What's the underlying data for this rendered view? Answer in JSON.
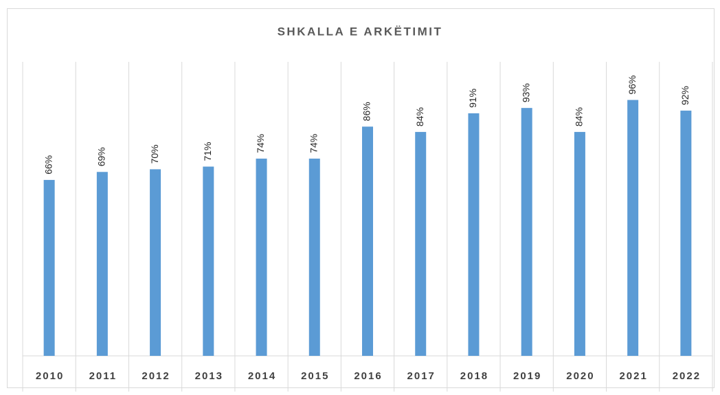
{
  "chart_data": {
    "type": "bar",
    "title": "SHKALLA E ARKËTIMIT",
    "categories": [
      "2010",
      "2011",
      "2012",
      "2013",
      "2014",
      "2015",
      "2016",
      "2017",
      "2018",
      "2019",
      "2020",
      "2021",
      "2022"
    ],
    "values": [
      66,
      69,
      70,
      71,
      74,
      74,
      86,
      84,
      91,
      93,
      84,
      96,
      92
    ],
    "value_labels": [
      "66%",
      "69%",
      "70%",
      "71%",
      "74%",
      "74%",
      "86%",
      "84%",
      "91%",
      "93%",
      "84%",
      "96%",
      "92%"
    ],
    "color": "#5b9bd5",
    "ylim": [
      0,
      100
    ]
  }
}
